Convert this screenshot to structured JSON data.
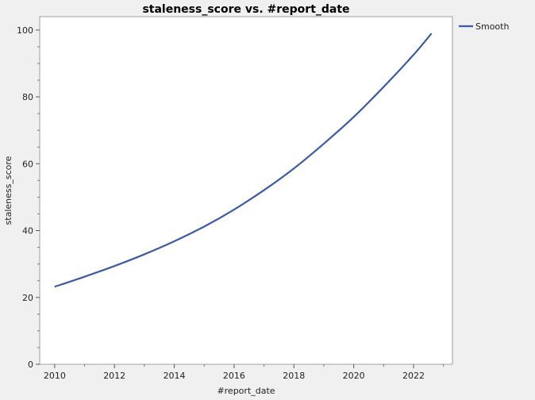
{
  "chart_data": {
    "type": "line",
    "title": "staleness_score vs. #report_date",
    "xlabel": "#report_date",
    "ylabel": "staleness_score",
    "xlim": [
      2009.5,
      2023.3
    ],
    "ylim": [
      0,
      104
    ],
    "x_ticks": [
      "2010",
      "2012",
      "2014",
      "2016",
      "2018",
      "2020",
      "2022"
    ],
    "y_ticks": [
      "0",
      "20",
      "40",
      "60",
      "80",
      "100"
    ],
    "grid": false,
    "legend_position": "top-right",
    "series": [
      {
        "name": "Smooth",
        "color": "#3b5ba5",
        "x": [
          2010,
          2011,
          2012,
          2013,
          2014,
          2015,
          2016,
          2017,
          2018,
          2019,
          2020,
          2021,
          2022,
          2022.6
        ],
        "y": [
          23.2,
          26.2,
          29.4,
          32.9,
          36.8,
          41.2,
          46.3,
          52.1,
          58.6,
          66.0,
          74.0,
          83.0,
          92.6,
          99.0
        ]
      }
    ]
  }
}
